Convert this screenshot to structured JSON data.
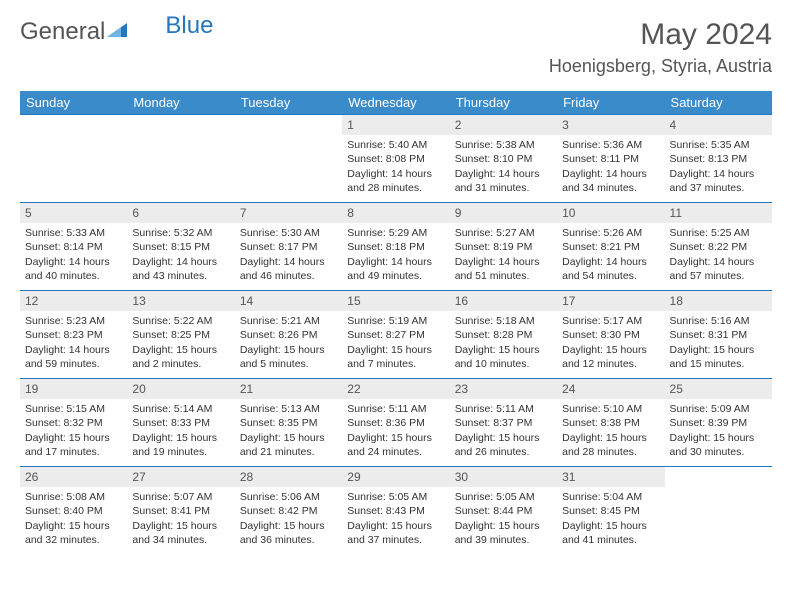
{
  "logo": {
    "part1": "General",
    "part2": "Blue"
  },
  "title": "May 2024",
  "location": "Hoenigsberg, Styria, Austria",
  "colors": {
    "header_bg": "#3a8bc9",
    "border": "#2676bb",
    "daynum_bg": "#ececec",
    "text": "#333333",
    "title_text": "#555555"
  },
  "weekdays": [
    "Sunday",
    "Monday",
    "Tuesday",
    "Wednesday",
    "Thursday",
    "Friday",
    "Saturday"
  ],
  "layout": {
    "first_weekday_index": 3,
    "rows": 5,
    "cols": 7
  },
  "days": [
    {
      "n": 1,
      "sunrise": "5:40 AM",
      "sunset": "8:08 PM",
      "daylight": "14 hours and 28 minutes."
    },
    {
      "n": 2,
      "sunrise": "5:38 AM",
      "sunset": "8:10 PM",
      "daylight": "14 hours and 31 minutes."
    },
    {
      "n": 3,
      "sunrise": "5:36 AM",
      "sunset": "8:11 PM",
      "daylight": "14 hours and 34 minutes."
    },
    {
      "n": 4,
      "sunrise": "5:35 AM",
      "sunset": "8:13 PM",
      "daylight": "14 hours and 37 minutes."
    },
    {
      "n": 5,
      "sunrise": "5:33 AM",
      "sunset": "8:14 PM",
      "daylight": "14 hours and 40 minutes."
    },
    {
      "n": 6,
      "sunrise": "5:32 AM",
      "sunset": "8:15 PM",
      "daylight": "14 hours and 43 minutes."
    },
    {
      "n": 7,
      "sunrise": "5:30 AM",
      "sunset": "8:17 PM",
      "daylight": "14 hours and 46 minutes."
    },
    {
      "n": 8,
      "sunrise": "5:29 AM",
      "sunset": "8:18 PM",
      "daylight": "14 hours and 49 minutes."
    },
    {
      "n": 9,
      "sunrise": "5:27 AM",
      "sunset": "8:19 PM",
      "daylight": "14 hours and 51 minutes."
    },
    {
      "n": 10,
      "sunrise": "5:26 AM",
      "sunset": "8:21 PM",
      "daylight": "14 hours and 54 minutes."
    },
    {
      "n": 11,
      "sunrise": "5:25 AM",
      "sunset": "8:22 PM",
      "daylight": "14 hours and 57 minutes."
    },
    {
      "n": 12,
      "sunrise": "5:23 AM",
      "sunset": "8:23 PM",
      "daylight": "14 hours and 59 minutes."
    },
    {
      "n": 13,
      "sunrise": "5:22 AM",
      "sunset": "8:25 PM",
      "daylight": "15 hours and 2 minutes."
    },
    {
      "n": 14,
      "sunrise": "5:21 AM",
      "sunset": "8:26 PM",
      "daylight": "15 hours and 5 minutes."
    },
    {
      "n": 15,
      "sunrise": "5:19 AM",
      "sunset": "8:27 PM",
      "daylight": "15 hours and 7 minutes."
    },
    {
      "n": 16,
      "sunrise": "5:18 AM",
      "sunset": "8:28 PM",
      "daylight": "15 hours and 10 minutes."
    },
    {
      "n": 17,
      "sunrise": "5:17 AM",
      "sunset": "8:30 PM",
      "daylight": "15 hours and 12 minutes."
    },
    {
      "n": 18,
      "sunrise": "5:16 AM",
      "sunset": "8:31 PM",
      "daylight": "15 hours and 15 minutes."
    },
    {
      "n": 19,
      "sunrise": "5:15 AM",
      "sunset": "8:32 PM",
      "daylight": "15 hours and 17 minutes."
    },
    {
      "n": 20,
      "sunrise": "5:14 AM",
      "sunset": "8:33 PM",
      "daylight": "15 hours and 19 minutes."
    },
    {
      "n": 21,
      "sunrise": "5:13 AM",
      "sunset": "8:35 PM",
      "daylight": "15 hours and 21 minutes."
    },
    {
      "n": 22,
      "sunrise": "5:11 AM",
      "sunset": "8:36 PM",
      "daylight": "15 hours and 24 minutes."
    },
    {
      "n": 23,
      "sunrise": "5:11 AM",
      "sunset": "8:37 PM",
      "daylight": "15 hours and 26 minutes."
    },
    {
      "n": 24,
      "sunrise": "5:10 AM",
      "sunset": "8:38 PM",
      "daylight": "15 hours and 28 minutes."
    },
    {
      "n": 25,
      "sunrise": "5:09 AM",
      "sunset": "8:39 PM",
      "daylight": "15 hours and 30 minutes."
    },
    {
      "n": 26,
      "sunrise": "5:08 AM",
      "sunset": "8:40 PM",
      "daylight": "15 hours and 32 minutes."
    },
    {
      "n": 27,
      "sunrise": "5:07 AM",
      "sunset": "8:41 PM",
      "daylight": "15 hours and 34 minutes."
    },
    {
      "n": 28,
      "sunrise": "5:06 AM",
      "sunset": "8:42 PM",
      "daylight": "15 hours and 36 minutes."
    },
    {
      "n": 29,
      "sunrise": "5:05 AM",
      "sunset": "8:43 PM",
      "daylight": "15 hours and 37 minutes."
    },
    {
      "n": 30,
      "sunrise": "5:05 AM",
      "sunset": "8:44 PM",
      "daylight": "15 hours and 39 minutes."
    },
    {
      "n": 31,
      "sunrise": "5:04 AM",
      "sunset": "8:45 PM",
      "daylight": "15 hours and 41 minutes."
    }
  ],
  "labels": {
    "sunrise": "Sunrise:",
    "sunset": "Sunset:",
    "daylight": "Daylight:"
  }
}
